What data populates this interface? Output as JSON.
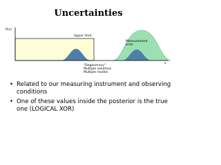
{
  "header": {
    "title": "Uncertainties"
  },
  "diagram": {
    "y_axis_label": "P(x)",
    "x_axis_label": "x",
    "upper_limit_label": "Upper limit",
    "measurement_error_label": [
      "Measurement",
      "error"
    ],
    "degeneracy_label": [
      "\"Degeneracy\"",
      "Multiple solutions",
      "Multiple modes"
    ]
  },
  "bullets": [
    "Related to our measuring instrument and observing conditions",
    "One of these values inside the posterior is the true one (LOGICAL XOR)"
  ]
}
